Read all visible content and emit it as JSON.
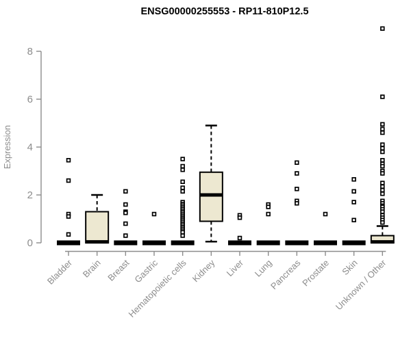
{
  "colors": {
    "background": "#FFFFFF",
    "box_fill": "#EDE8D1",
    "box_stroke": "#000000",
    "axis": "#8C8C8C",
    "text": "#8C8C8C",
    "title": "#000000",
    "outlier_fill": "#FFFFFF"
  },
  "chart_data": {
    "type": "box",
    "title": "ENSG00000255553 - RP11-810P12.5",
    "ylabel": "Expression",
    "xlabel": "",
    "yticks": [
      0,
      2,
      4,
      6,
      8
    ],
    "ylim": [
      0,
      9.2
    ],
    "grid": false,
    "legend": "none",
    "categories": [
      "Bladder",
      "Brain",
      "Breast",
      "Gastric",
      "Hematopoietic cells",
      "Kidney",
      "Liver",
      "Lung",
      "Pancreas",
      "Prostate",
      "Skin",
      "Unknown / Other"
    ],
    "boxes": [
      {
        "category": "Bladder",
        "q1": 0,
        "median": 0,
        "q3": 0,
        "whisker_low": 0,
        "whisker_high": 0,
        "outliers": [
          3.45,
          2.6,
          1.2,
          1.1,
          0.35
        ]
      },
      {
        "category": "Brain",
        "q1": 0,
        "median": 0.04,
        "q3": 1.3,
        "whisker_low": 0,
        "whisker_high": 2.0,
        "outliers": []
      },
      {
        "category": "Breast",
        "q1": 0,
        "median": 0,
        "q3": 0,
        "whisker_low": 0,
        "whisker_high": 0,
        "outliers": [
          2.15,
          1.6,
          1.3,
          1.25,
          0.8,
          0.3
        ]
      },
      {
        "category": "Gastric",
        "q1": 0,
        "median": 0,
        "q3": 0,
        "whisker_low": 0,
        "whisker_high": 0,
        "outliers": [
          1.2
        ]
      },
      {
        "category": "Hematopoietic cells",
        "q1": 0,
        "median": 0,
        "q3": 0,
        "whisker_low": 0,
        "whisker_high": 0,
        "outliers": [
          3.5,
          3.2,
          3.05,
          2.55,
          2.3,
          2.15,
          1.7,
          1.62,
          1.55,
          1.48,
          1.41,
          1.34,
          1.27,
          1.2,
          1.13,
          1.06,
          1.0,
          0.93,
          0.86,
          0.79,
          0.72,
          0.65,
          0.58,
          0.51,
          0.44,
          0.3
        ]
      },
      {
        "category": "Kidney",
        "q1": 0.9,
        "median": 2.0,
        "q3": 2.95,
        "whisker_low": 0.05,
        "whisker_high": 4.9,
        "outliers": []
      },
      {
        "category": "Liver",
        "q1": 0,
        "median": 0,
        "q3": 0,
        "whisker_low": 0,
        "whisker_high": 0,
        "outliers": [
          1.15,
          1.05,
          0.2
        ]
      },
      {
        "category": "Lung",
        "q1": 0,
        "median": 0,
        "q3": 0,
        "whisker_low": 0,
        "whisker_high": 0,
        "outliers": [
          1.6,
          1.5,
          1.2
        ]
      },
      {
        "category": "Pancreas",
        "q1": 0,
        "median": 0,
        "q3": 0,
        "whisker_low": 0,
        "whisker_high": 0,
        "outliers": [
          3.35,
          2.9,
          2.25,
          1.75,
          1.65
        ]
      },
      {
        "category": "Prostate",
        "q1": 0,
        "median": 0,
        "q3": 0,
        "whisker_low": 0,
        "whisker_high": 0,
        "outliers": [
          1.2
        ]
      },
      {
        "category": "Skin",
        "q1": 0,
        "median": 0,
        "q3": 0,
        "whisker_low": 0,
        "whisker_high": 0,
        "outliers": [
          2.65,
          2.15,
          1.7,
          0.95
        ]
      },
      {
        "category": "Unknown / Other",
        "q1": 0,
        "median": 0.04,
        "q3": 0.3,
        "whisker_low": 0,
        "whisker_high": 0.7,
        "outliers": [
          8.95,
          6.1,
          4.95,
          4.75,
          4.6,
          4.1,
          3.95,
          3.8,
          3.45,
          3.3,
          3.2,
          3.0,
          2.9,
          2.5,
          2.35,
          2.2,
          2.05,
          1.75,
          1.65,
          1.55,
          1.5,
          1.4,
          1.3,
          1.15,
          1.05,
          0.95,
          0.85
        ]
      }
    ]
  }
}
